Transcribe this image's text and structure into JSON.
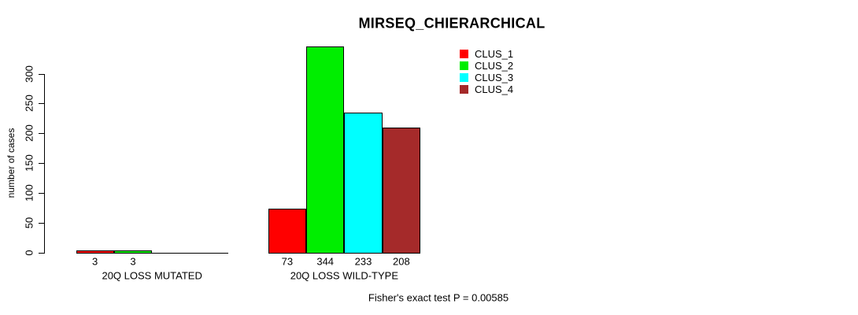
{
  "chart_data": {
    "type": "bar",
    "title": "MIRSEQ_CHIERARCHICAL",
    "xlabel": "",
    "ylabel": "number of cases",
    "ylim": [
      0,
      345
    ],
    "y_ticks": [
      0,
      50,
      100,
      150,
      200,
      250,
      300
    ],
    "grid": false,
    "legend_position": "top-right",
    "categories": [
      "20Q LOSS MUTATED",
      "20Q LOSS WILD-TYPE"
    ],
    "series": [
      {
        "name": "CLUS_1",
        "color": "#FF0000",
        "values": [
          3,
          73
        ]
      },
      {
        "name": "CLUS_2",
        "color": "#00EE00",
        "values": [
          3,
          344
        ]
      },
      {
        "name": "CLUS_3",
        "color": "#00FFFF",
        "values": [
          0,
          233
        ]
      },
      {
        "name": "CLUS_4",
        "color": "#A52A2A",
        "values": [
          0,
          208
        ]
      }
    ],
    "bar_value_labels": [
      [
        "3",
        "3",
        "",
        ""
      ],
      [
        "73",
        "344",
        "233",
        "208"
      ]
    ],
    "bar_border_color": "#000000",
    "annotation": "Fisher's exact test P = 0.00585"
  }
}
